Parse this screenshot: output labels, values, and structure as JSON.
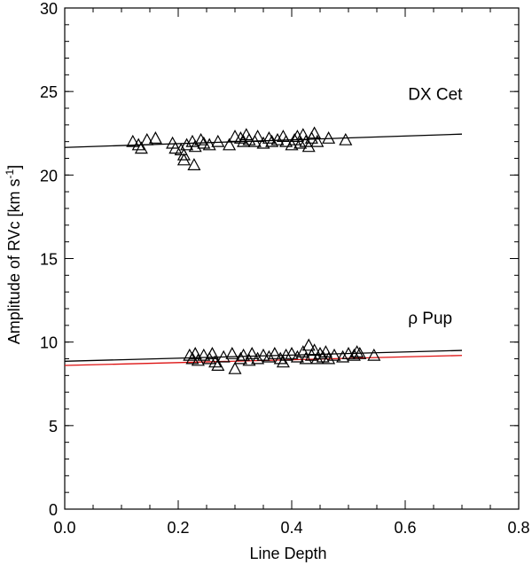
{
  "chart_data": {
    "type": "scatter",
    "xlabel": "Line Depth",
    "ylabel": "Amplitude of RVc [km s",
    "ylabel_sup": "-1",
    "ylabel_end": "]",
    "xlim": [
      0.0,
      0.8
    ],
    "ylim": [
      0,
      30
    ],
    "x_ticks": [
      0.0,
      0.2,
      0.4,
      0.6,
      0.8
    ],
    "x_tick_labels": [
      "0.0",
      "0.2",
      "0.4",
      "0.6",
      "0.8"
    ],
    "y_ticks": [
      0,
      5,
      10,
      15,
      20,
      25,
      30
    ],
    "y_tick_labels": [
      "0",
      "5",
      "10",
      "15",
      "20",
      "25",
      "30"
    ],
    "marker": "triangle",
    "annotations": [
      {
        "text": "DX Cet",
        "x": 0.605,
        "y": 24.5
      },
      {
        "text": "ρ Pup",
        "x": 0.605,
        "y": 11.1
      }
    ],
    "series": [
      {
        "name": "DX Cet",
        "points": [
          [
            0.12,
            22.0
          ],
          [
            0.13,
            21.8
          ],
          [
            0.135,
            21.6
          ],
          [
            0.145,
            22.1
          ],
          [
            0.16,
            22.2
          ],
          [
            0.19,
            21.9
          ],
          [
            0.195,
            21.6
          ],
          [
            0.205,
            21.5
          ],
          [
            0.21,
            21.2
          ],
          [
            0.215,
            21.8
          ],
          [
            0.21,
            20.9
          ],
          [
            0.225,
            22.0
          ],
          [
            0.23,
            21.7
          ],
          [
            0.228,
            20.6
          ],
          [
            0.24,
            22.1
          ],
          [
            0.245,
            21.9
          ],
          [
            0.255,
            21.8
          ],
          [
            0.27,
            22.0
          ],
          [
            0.29,
            21.8
          ],
          [
            0.3,
            22.3
          ],
          [
            0.31,
            22.2
          ],
          [
            0.315,
            22.0
          ],
          [
            0.32,
            22.4
          ],
          [
            0.325,
            22.1
          ],
          [
            0.335,
            22.0
          ],
          [
            0.34,
            22.3
          ],
          [
            0.35,
            21.9
          ],
          [
            0.36,
            22.2
          ],
          [
            0.365,
            22.0
          ],
          [
            0.375,
            22.1
          ],
          [
            0.385,
            22.3
          ],
          [
            0.39,
            22.0
          ],
          [
            0.4,
            21.8
          ],
          [
            0.405,
            22.1
          ],
          [
            0.41,
            22.3
          ],
          [
            0.415,
            21.9
          ],
          [
            0.42,
            22.4
          ],
          [
            0.425,
            22.0
          ],
          [
            0.43,
            21.7
          ],
          [
            0.435,
            22.2
          ],
          [
            0.44,
            22.5
          ],
          [
            0.445,
            22.0
          ],
          [
            0.465,
            22.2
          ],
          [
            0.495,
            22.1
          ]
        ],
        "fit": {
          "x": [
            0.0,
            0.7
          ],
          "y": [
            21.65,
            22.45
          ],
          "color": "#000000"
        }
      },
      {
        "name": "ρ Pup",
        "points": [
          [
            0.22,
            9.2
          ],
          [
            0.225,
            9.0
          ],
          [
            0.23,
            9.3
          ],
          [
            0.235,
            8.9
          ],
          [
            0.245,
            9.2
          ],
          [
            0.255,
            9.0
          ],
          [
            0.26,
            9.3
          ],
          [
            0.265,
            8.8
          ],
          [
            0.27,
            8.6
          ],
          [
            0.28,
            9.1
          ],
          [
            0.295,
            9.3
          ],
          [
            0.3,
            8.4
          ],
          [
            0.31,
            9.0
          ],
          [
            0.315,
            9.2
          ],
          [
            0.325,
            8.9
          ],
          [
            0.33,
            9.3
          ],
          [
            0.34,
            9.0
          ],
          [
            0.35,
            9.2
          ],
          [
            0.36,
            9.1
          ],
          [
            0.37,
            9.3
          ],
          [
            0.38,
            9.0
          ],
          [
            0.385,
            8.8
          ],
          [
            0.39,
            9.2
          ],
          [
            0.4,
            9.3
          ],
          [
            0.41,
            9.1
          ],
          [
            0.42,
            9.4
          ],
          [
            0.425,
            9.0
          ],
          [
            0.43,
            9.8
          ],
          [
            0.435,
            9.2
          ],
          [
            0.44,
            9.5
          ],
          [
            0.445,
            9.0
          ],
          [
            0.45,
            9.3
          ],
          [
            0.455,
            9.1
          ],
          [
            0.46,
            9.4
          ],
          [
            0.465,
            9.0
          ],
          [
            0.475,
            9.2
          ],
          [
            0.49,
            9.1
          ],
          [
            0.5,
            9.3
          ],
          [
            0.51,
            9.2
          ],
          [
            0.515,
            9.4
          ],
          [
            0.52,
            9.3
          ],
          [
            0.545,
            9.2
          ]
        ],
        "fit": {
          "x": [
            0.0,
            0.7
          ],
          "y": [
            8.85,
            9.5
          ],
          "color": "#000000"
        }
      }
    ],
    "extra_lines": [
      {
        "name": "ρ Pup alternate fit",
        "x": [
          0.0,
          0.7
        ],
        "y": [
          8.6,
          9.2
        ],
        "color": "#dd1111"
      }
    ]
  }
}
